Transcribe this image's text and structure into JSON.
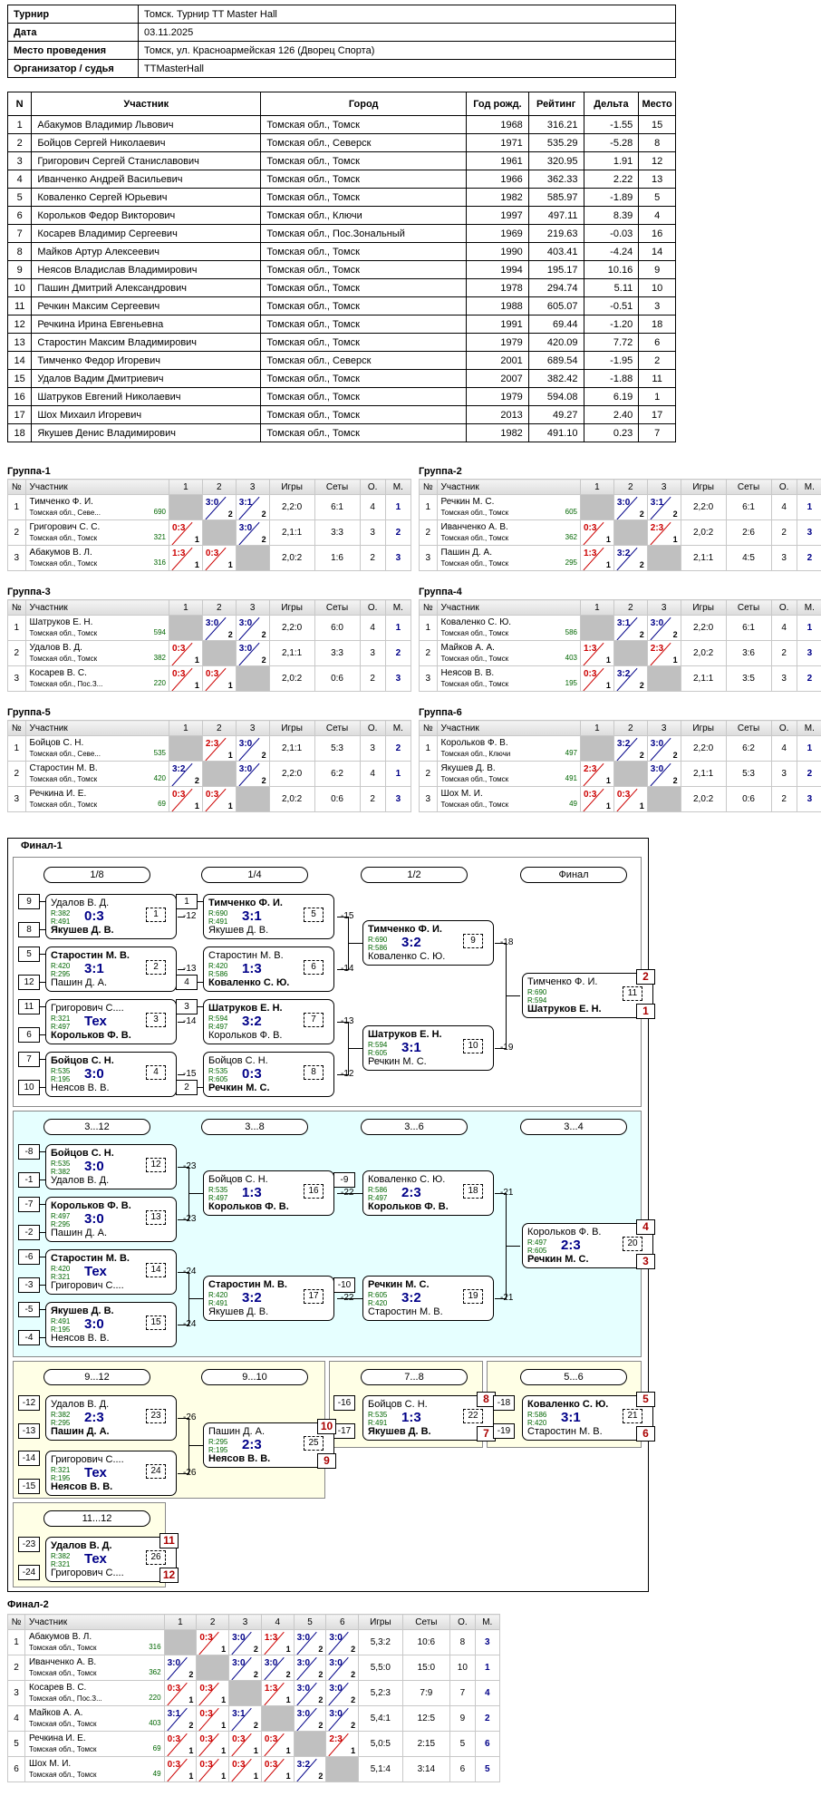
{
  "info": [
    {
      "k": "Турнир",
      "v": "Томск. Турнир TT Master Hall"
    },
    {
      "k": "Дата",
      "v": "03.11.2025"
    },
    {
      "k": "Место проведения",
      "v": "Томск, ул. Красноармейская 126 (Дворец Спорта)"
    },
    {
      "k": "Организатор / судья",
      "v": "TTMasterHall"
    }
  ],
  "main_headers": [
    "N",
    "Участник",
    "Город",
    "Год рожд.",
    "Рейтинг",
    "Дельта",
    "Место"
  ],
  "players": [
    [
      "1",
      "Абакумов Владимир Львович",
      "Томская обл., Томск",
      "1968",
      "316.21",
      "-1.55",
      "15"
    ],
    [
      "2",
      "Бойцов Сергей Николаевич",
      "Томская обл., Северск",
      "1971",
      "535.29",
      "-5.28",
      "8"
    ],
    [
      "3",
      "Григорович Сергей Станиславович",
      "Томская обл., Томск",
      "1961",
      "320.95",
      "1.91",
      "12"
    ],
    [
      "4",
      "Иванченко Андрей Васильевич",
      "Томская обл., Томск",
      "1966",
      "362.33",
      "2.22",
      "13"
    ],
    [
      "5",
      "Коваленко Сергей Юрьевич",
      "Томская обл., Томск",
      "1982",
      "585.97",
      "-1.89",
      "5"
    ],
    [
      "6",
      "Корольков Федор Викторович",
      "Томская обл., Ключи",
      "1997",
      "497.11",
      "8.39",
      "4"
    ],
    [
      "7",
      "Косарев Владимир Сергеевич",
      "Томская обл., Пос.Зональный",
      "1969",
      "219.63",
      "-0.03",
      "16"
    ],
    [
      "8",
      "Майков Артур Алексеевич",
      "Томская обл., Томск",
      "1990",
      "403.41",
      "-4.24",
      "14"
    ],
    [
      "9",
      "Неясов Владислав Владимирович",
      "Томская обл., Томск",
      "1994",
      "195.17",
      "10.16",
      "9"
    ],
    [
      "10",
      "Пашин Дмитрий Александрович",
      "Томская обл., Томск",
      "1978",
      "294.74",
      "5.11",
      "10"
    ],
    [
      "11",
      "Речкин Максим Сергеевич",
      "Томская обл., Томск",
      "1988",
      "605.07",
      "-0.51",
      "3"
    ],
    [
      "12",
      "Речкина Ирина Евгеньевна",
      "Томская обл., Томск",
      "1991",
      "69.44",
      "-1.20",
      "18"
    ],
    [
      "13",
      "Старостин Максим Владимирович",
      "Томская обл., Томск",
      "1979",
      "420.09",
      "7.72",
      "6"
    ],
    [
      "14",
      "Тимченко Федор Игоревич",
      "Томская обл., Северск",
      "2001",
      "689.54",
      "-1.95",
      "2"
    ],
    [
      "15",
      "Удалов Вадим Дмитриевич",
      "Томская обл., Томск",
      "2007",
      "382.42",
      "-1.88",
      "11"
    ],
    [
      "16",
      "Шатруков Евгений Николаевич",
      "Томская обл., Томск",
      "1979",
      "594.08",
      "6.19",
      "1"
    ],
    [
      "17",
      "Шох Михаил Игоревич",
      "Томская обл., Томск",
      "2013",
      "49.27",
      "2.40",
      "17"
    ],
    [
      "18",
      "Якушев Денис Владимирович",
      "Томская обл., Томск",
      "1982",
      "491.10",
      "0.23",
      "7"
    ]
  ],
  "group_headers": [
    "№",
    "Участник",
    "1",
    "2",
    "3",
    "Игры",
    "Сеты",
    "О.",
    "М."
  ],
  "groups": [
    {
      "title": "Группа-1",
      "rows": [
        {
          "n": "1",
          "name": "Тимченко Ф. И.",
          "city": "Томская обл., Севе...",
          "r": "690",
          "s": [
            "",
            "3:0|2",
            "3:1|2"
          ],
          "g": "2,2:0",
          "sets": "6:1",
          "o": "4",
          "m": "1"
        },
        {
          "n": "2",
          "name": "Григорович С. С.",
          "city": "Томская обл., Томск",
          "r": "321",
          "s": [
            "0:3|1",
            "",
            "3:0|2"
          ],
          "g": "2,1:1",
          "sets": "3:3",
          "o": "3",
          "m": "2"
        },
        {
          "n": "3",
          "name": "Абакумов В. Л.",
          "city": "Томская обл., Томск",
          "r": "316",
          "s": [
            "1:3|1",
            "0:3|1",
            ""
          ],
          "g": "2,0:2",
          "sets": "1:6",
          "o": "2",
          "m": "3"
        }
      ]
    },
    {
      "title": "Группа-2",
      "rows": [
        {
          "n": "1",
          "name": "Речкин М. С.",
          "city": "Томская обл., Томск",
          "r": "605",
          "s": [
            "",
            "3:0|2",
            "3:1|2"
          ],
          "g": "2,2:0",
          "sets": "6:1",
          "o": "4",
          "m": "1"
        },
        {
          "n": "2",
          "name": "Иванченко А. В.",
          "city": "Томская обл., Томск",
          "r": "362",
          "s": [
            "0:3|1",
            "",
            "2:3|1"
          ],
          "g": "2,0:2",
          "sets": "2:6",
          "o": "2",
          "m": "3"
        },
        {
          "n": "3",
          "name": "Пашин Д. А.",
          "city": "Томская обл., Томск",
          "r": "295",
          "s": [
            "1:3|1",
            "3:2|2",
            ""
          ],
          "g": "2,1:1",
          "sets": "4:5",
          "o": "3",
          "m": "2"
        }
      ]
    },
    {
      "title": "Группа-3",
      "rows": [
        {
          "n": "1",
          "name": "Шатруков Е. Н.",
          "city": "Томская обл., Томск",
          "r": "594",
          "s": [
            "",
            "3:0|2",
            "3:0|2"
          ],
          "g": "2,2:0",
          "sets": "6:0",
          "o": "4",
          "m": "1"
        },
        {
          "n": "2",
          "name": "Удалов В. Д.",
          "city": "Томская обл., Томск",
          "r": "382",
          "s": [
            "0:3|1",
            "",
            "3:0|2"
          ],
          "g": "2,1:1",
          "sets": "3:3",
          "o": "3",
          "m": "2"
        },
        {
          "n": "3",
          "name": "Косарев В. С.",
          "city": "Томская обл., Пос.З...",
          "r": "220",
          "s": [
            "0:3|1",
            "0:3|1",
            ""
          ],
          "g": "2,0:2",
          "sets": "0:6",
          "o": "2",
          "m": "3"
        }
      ]
    },
    {
      "title": "Группа-4",
      "rows": [
        {
          "n": "1",
          "name": "Коваленко С. Ю.",
          "city": "Томская обл., Томск",
          "r": "586",
          "s": [
            "",
            "3:1|2",
            "3:0|2"
          ],
          "g": "2,2:0",
          "sets": "6:1",
          "o": "4",
          "m": "1"
        },
        {
          "n": "2",
          "name": "Майков А. А.",
          "city": "Томская обл., Томск",
          "r": "403",
          "s": [
            "1:3|1",
            "",
            "2:3|1"
          ],
          "g": "2,0:2",
          "sets": "3:6",
          "o": "2",
          "m": "3"
        },
        {
          "n": "3",
          "name": "Неясов В. В.",
          "city": "Томская обл., Томск",
          "r": "195",
          "s": [
            "0:3|1",
            "3:2|2",
            ""
          ],
          "g": "2,1:1",
          "sets": "3:5",
          "o": "3",
          "m": "2"
        }
      ]
    },
    {
      "title": "Группа-5",
      "rows": [
        {
          "n": "1",
          "name": "Бойцов С. Н.",
          "city": "Томская обл., Севе...",
          "r": "535",
          "s": [
            "",
            "2:3|1",
            "3:0|2"
          ],
          "g": "2,1:1",
          "sets": "5:3",
          "o": "3",
          "m": "2"
        },
        {
          "n": "2",
          "name": "Старостин М. В.",
          "city": "Томская обл., Томск",
          "r": "420",
          "s": [
            "3:2|2",
            "",
            "3:0|2"
          ],
          "g": "2,2:0",
          "sets": "6:2",
          "o": "4",
          "m": "1"
        },
        {
          "n": "3",
          "name": "Речкина И. Е.",
          "city": "Томская обл., Томск",
          "r": "69",
          "s": [
            "0:3|1",
            "0:3|1",
            ""
          ],
          "g": "2,0:2",
          "sets": "0:6",
          "o": "2",
          "m": "3"
        }
      ]
    },
    {
      "title": "Группа-6",
      "rows": [
        {
          "n": "1",
          "name": "Корольков Ф. В.",
          "city": "Томская обл., Ключи",
          "r": "497",
          "s": [
            "",
            "3:2|2",
            "3:0|2"
          ],
          "g": "2,2:0",
          "sets": "6:2",
          "o": "4",
          "m": "1"
        },
        {
          "n": "2",
          "name": "Якушев Д. В.",
          "city": "Томская обл., Томск",
          "r": "491",
          "s": [
            "2:3|1",
            "",
            "3:0|2"
          ],
          "g": "2,1:1",
          "sets": "5:3",
          "o": "3",
          "m": "2"
        },
        {
          "n": "3",
          "name": "Шох М. И.",
          "city": "Томская обл., Томск",
          "r": "49",
          "s": [
            "0:3|1",
            "0:3|1",
            ""
          ],
          "g": "2,0:2",
          "sets": "0:6",
          "o": "2",
          "m": "3"
        }
      ]
    }
  ],
  "final1": {
    "title": "Финал-1",
    "rounds": {
      "r18": "1/8",
      "r14": "1/4",
      "r12": "1/2",
      "rf": "Финал",
      "c312": "3...12",
      "c38": "3...8",
      "c36": "3...6",
      "c34": "3...4",
      "c912": "9...12",
      "c910": "9...10",
      "c78": "7...8",
      "c56": "5...6",
      "c1112": "11...12"
    },
    "matches": [
      {
        "p1": "Удалов В. Д.",
        "p2": "Якушев Д. В.",
        "r1": "R:382",
        "r2": "R:491",
        "res": "0:3",
        "num": "1",
        "w": 2,
        "out": "-12"
      },
      {
        "p1": "Старостин М. В.",
        "p2": "Пашин Д. А.",
        "r1": "R:420",
        "r2": "R:295",
        "res": "3:1",
        "num": "2",
        "w": 1,
        "out": "-13"
      },
      {
        "p1": "Григорович С....",
        "p2": "Корольков Ф. В.",
        "r1": "R:321",
        "r2": "R:497",
        "res": "Тех",
        "num": "3",
        "w": 2,
        "out": "-14"
      },
      {
        "p1": "Бойцов С. Н.",
        "p2": "Неясов В. В.",
        "r1": "R:535",
        "r2": "R:195",
        "res": "3:0",
        "num": "4",
        "w": 1,
        "out": "-15"
      },
      {
        "p1": "Тимченко Ф. И.",
        "p2": "Якушев Д. В.",
        "r1": "R:690",
        "r2": "R:491",
        "res": "3:1",
        "num": "5",
        "w": 1,
        "out": "-15"
      },
      {
        "p1": "Старостин М. В.",
        "p2": "Коваленко С. Ю.",
        "r1": "R:420",
        "r2": "R:586",
        "res": "1:3",
        "num": "6",
        "w": 2,
        "out": "-14"
      },
      {
        "p1": "Шатруков Е. Н.",
        "p2": "Корольков Ф. В.",
        "r1": "R:594",
        "r2": "R:497",
        "res": "3:2",
        "num": "7",
        "w": 1,
        "out": "-13"
      },
      {
        "p1": "Бойцов С. Н.",
        "p2": "Речкин М. С.",
        "r1": "R:535",
        "r2": "R:605",
        "res": "0:3",
        "num": "8",
        "w": 2,
        "out": "-12"
      },
      {
        "p1": "Тимченко Ф. И.",
        "p2": "Коваленко С. Ю.",
        "r1": "R:690",
        "r2": "R:586",
        "res": "3:2",
        "num": "9",
        "w": 1,
        "out": "-18"
      },
      {
        "p1": "Шатруков Е. Н.",
        "p2": "Речкин М. С.",
        "r1": "R:594",
        "r2": "R:605",
        "res": "3:1",
        "num": "10",
        "w": 1,
        "out": "-19"
      },
      {
        "p1": "Тимченко Ф. И.",
        "p2": "Шатруков Е. Н.",
        "r1": "R:690",
        "r2": "R:594",
        "res": "",
        "num": "11",
        "w": 2,
        "pl1": "2",
        "pl2": "1"
      },
      {
        "p1": "Бойцов С. Н.",
        "p2": "Удалов В. Д.",
        "r1": "R:535",
        "r2": "R:382",
        "res": "3:0",
        "num": "12",
        "w": 1,
        "out": "-23"
      },
      {
        "p1": "Корольков Ф. В.",
        "p2": "Пашин Д. А.",
        "r1": "R:497",
        "r2": "R:295",
        "res": "3:0",
        "num": "13",
        "w": 1,
        "out": "-23"
      },
      {
        "p1": "Старостин М. В.",
        "p2": "Григорович С....",
        "r1": "R:420",
        "r2": "R:321",
        "res": "Тех",
        "num": "14",
        "w": 1,
        "out": "-24"
      },
      {
        "p1": "Якушев Д. В.",
        "p2": "Неясов В. В.",
        "r1": "R:491",
        "r2": "R:195",
        "res": "3:0",
        "num": "15",
        "w": 1,
        "out": "-24"
      },
      {
        "p1": "Бойцов С. Н.",
        "p2": "Корольков Ф. В.",
        "r1": "R:535",
        "r2": "R:497",
        "res": "1:3",
        "num": "16",
        "w": 2,
        "out": "-22"
      },
      {
        "p1": "Старостин М. В.",
        "p2": "Якушев Д. В.",
        "r1": "R:420",
        "r2": "R:491",
        "res": "3:2",
        "num": "17",
        "w": 1,
        "out": "-22"
      },
      {
        "p1": "Коваленко С. Ю.",
        "p2": "Корольков Ф. В.",
        "r1": "R:586",
        "r2": "R:497",
        "res": "2:3",
        "num": "18",
        "w": 2,
        "out": "-21"
      },
      {
        "p1": "Речкин М. С.",
        "p2": "Старостин М. В.",
        "r1": "R:605",
        "r2": "R:420",
        "res": "3:2",
        "num": "19",
        "w": 1,
        "out": "-21"
      },
      {
        "p1": "Корольков Ф. В.",
        "p2": "Речкин М. С.",
        "r1": "R:497",
        "r2": "R:605",
        "res": "2:3",
        "num": "20",
        "w": 2,
        "pl1": "4",
        "pl2": "3"
      },
      {
        "p1": "Бойцов С. Н.",
        "p2": "Якушев Д. В.",
        "r1": "R:535",
        "r2": "R:491",
        "res": "1:3",
        "num": "22",
        "w": 2,
        "pl1": "8",
        "pl2": "7"
      },
      {
        "p1": "Коваленко С. Ю.",
        "p2": "Старостин М. В.",
        "r1": "R:586",
        "r2": "R:420",
        "res": "3:1",
        "num": "21",
        "w": 1,
        "pl1": "5",
        "pl2": "6"
      },
      {
        "p1": "Удалов В. Д.",
        "p2": "Пашин Д. А.",
        "r1": "R:382",
        "r2": "R:295",
        "res": "2:3",
        "num": "23",
        "w": 2,
        "out": "-26"
      },
      {
        "p1": "Григорович С....",
        "p2": "Неясов В. В.",
        "r1": "R:321",
        "r2": "R:195",
        "res": "Тех",
        "num": "24",
        "w": 2,
        "out": "-26"
      },
      {
        "p1": "Пашин Д. А.",
        "p2": "Неясов В. В.",
        "r1": "R:295",
        "r2": "R:195",
        "res": "2:3",
        "num": "25",
        "w": 2,
        "pl1": "10",
        "pl2": "9"
      },
      {
        "p1": "Удалов В. Д.",
        "p2": "Григорович С....",
        "r1": "R:382",
        "r2": "R:321",
        "res": "Тех",
        "num": "26",
        "w": 1,
        "pl1": "11",
        "pl2": "12"
      }
    ],
    "seeds": [
      "9",
      "8",
      "5",
      "12",
      "11",
      "6",
      "7",
      "10",
      "1",
      "4",
      "3",
      "2",
      "-8",
      "-1",
      "-7",
      "-2",
      "-6",
      "-3",
      "-5",
      "-4",
      "-9",
      "-10",
      "-16",
      "-17",
      "-18",
      "-19",
      "-12",
      "-13",
      "-14",
      "-15",
      "-23",
      "-24"
    ]
  },
  "final2": {
    "title": "Финал-2",
    "headers": [
      "№",
      "Участник",
      "1",
      "2",
      "3",
      "4",
      "5",
      "6",
      "Игры",
      "Сеты",
      "О.",
      "М."
    ],
    "rows": [
      {
        "n": "1",
        "name": "Абакумов В. Л.",
        "city": "Томская обл., Томск",
        "r": "316",
        "s": [
          "",
          "0:3|1",
          "3:0|2",
          "1:3|1",
          "3:0|2",
          "3:0|2"
        ],
        "g": "5,3:2",
        "sets": "10:6",
        "o": "8",
        "m": "3"
      },
      {
        "n": "2",
        "name": "Иванченко А. В.",
        "city": "Томская обл., Томск",
        "r": "362",
        "s": [
          "3:0|2",
          "",
          "3:0|2",
          "3:0|2",
          "3:0|2",
          "3:0|2"
        ],
        "g": "5,5:0",
        "sets": "15:0",
        "o": "10",
        "m": "1"
      },
      {
        "n": "3",
        "name": "Косарев В. С.",
        "city": "Томская обл., Пос.З...",
        "r": "220",
        "s": [
          "0:3|1",
          "0:3|1",
          "",
          "1:3|1",
          "3:0|2",
          "3:0|2"
        ],
        "g": "5,2:3",
        "sets": "7:9",
        "o": "7",
        "m": "4"
      },
      {
        "n": "4",
        "name": "Майков А. А.",
        "city": "Томская обл., Томск",
        "r": "403",
        "s": [
          "3:1|2",
          "0:3|1",
          "3:1|2",
          "",
          "3:0|2",
          "3:0|2"
        ],
        "g": "5,4:1",
        "sets": "12:5",
        "o": "9",
        "m": "2"
      },
      {
        "n": "5",
        "name": "Речкина И. Е.",
        "city": "Томская обл., Томск",
        "r": "69",
        "s": [
          "0:3|1",
          "0:3|1",
          "0:3|1",
          "0:3|1",
          "",
          "2:3|1"
        ],
        "g": "5,0:5",
        "sets": "2:15",
        "o": "5",
        "m": "6"
      },
      {
        "n": "6",
        "name": "Шох М. И.",
        "city": "Томская обл., Томск",
        "r": "49",
        "s": [
          "0:3|1",
          "0:3|1",
          "0:3|1",
          "0:3|1",
          "3:2|2",
          ""
        ],
        "g": "5,1:4",
        "sets": "3:14",
        "o": "6",
        "m": "5"
      }
    ]
  }
}
